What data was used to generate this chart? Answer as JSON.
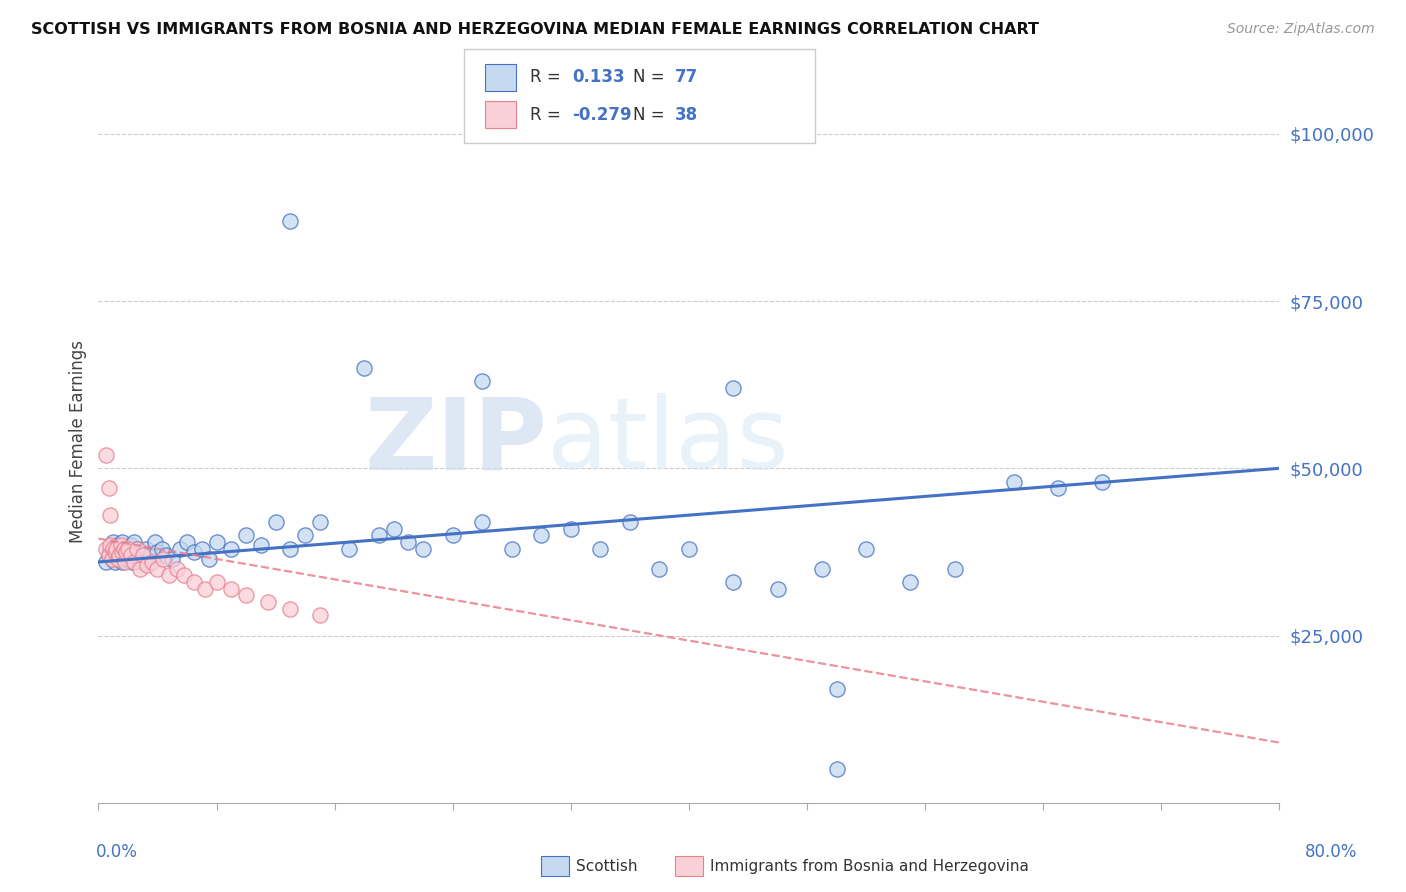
{
  "title": "SCOTTISH VS IMMIGRANTS FROM BOSNIA AND HERZEGOVINA MEDIAN FEMALE EARNINGS CORRELATION CHART",
  "source": "Source: ZipAtlas.com",
  "ylabel": "Median Female Earnings",
  "xlim": [
    0.0,
    0.8
  ],
  "ylim": [
    0,
    108000
  ],
  "blue_R": 0.133,
  "blue_N": 77,
  "pink_R": -0.279,
  "pink_N": 38,
  "blue_fill": "#c5d9f0",
  "blue_edge": "#4472c4",
  "pink_fill": "#f9d0d8",
  "pink_edge": "#e8808e",
  "pink_line_color": "#e8808e",
  "blue_line_color": "#4472c4",
  "watermark_zip": "ZIP",
  "watermark_atlas": "atlas",
  "legend_label_blue": "Scottish",
  "legend_label_pink": "Immigrants from Bosnia and Herzegovina",
  "blue_x": [
    0.005,
    0.007,
    0.008,
    0.009,
    0.01,
    0.01,
    0.011,
    0.012,
    0.012,
    0.013,
    0.014,
    0.015,
    0.015,
    0.016,
    0.016,
    0.017,
    0.018,
    0.018,
    0.019,
    0.02,
    0.021,
    0.022,
    0.023,
    0.024,
    0.025,
    0.026,
    0.028,
    0.03,
    0.032,
    0.035,
    0.038,
    0.04,
    0.043,
    0.046,
    0.05,
    0.055,
    0.06,
    0.065,
    0.07,
    0.075,
    0.08,
    0.09,
    0.1,
    0.11,
    0.12,
    0.13,
    0.14,
    0.15,
    0.17,
    0.19,
    0.2,
    0.21,
    0.22,
    0.24,
    0.26,
    0.28,
    0.3,
    0.32,
    0.34,
    0.36,
    0.38,
    0.4,
    0.43,
    0.46,
    0.49,
    0.52,
    0.55,
    0.58,
    0.62,
    0.65,
    0.26,
    0.18,
    0.13,
    0.43,
    0.68,
    0.5,
    0.5
  ],
  "blue_y": [
    36000,
    37000,
    38000,
    36500,
    37500,
    39000,
    36000,
    38000,
    37000,
    38500,
    36500,
    37000,
    38000,
    36000,
    39000,
    37500,
    38000,
    36500,
    37000,
    38000,
    37000,
    38500,
    36000,
    39000,
    37000,
    38000,
    37500,
    36000,
    38000,
    37000,
    39000,
    37500,
    38000,
    37000,
    36500,
    38000,
    39000,
    37500,
    38000,
    36500,
    39000,
    38000,
    40000,
    38500,
    42000,
    38000,
    40000,
    42000,
    38000,
    40000,
    41000,
    39000,
    38000,
    40000,
    42000,
    38000,
    40000,
    41000,
    38000,
    42000,
    35000,
    38000,
    33000,
    32000,
    35000,
    38000,
    33000,
    35000,
    48000,
    47000,
    63000,
    65000,
    87000,
    62000,
    48000,
    17000,
    5000
  ],
  "pink_x": [
    0.005,
    0.007,
    0.008,
    0.009,
    0.01,
    0.011,
    0.012,
    0.013,
    0.014,
    0.015,
    0.016,
    0.017,
    0.018,
    0.019,
    0.02,
    0.022,
    0.024,
    0.026,
    0.028,
    0.03,
    0.033,
    0.036,
    0.04,
    0.044,
    0.048,
    0.053,
    0.058,
    0.065,
    0.072,
    0.08,
    0.09,
    0.1,
    0.115,
    0.13,
    0.15,
    0.005,
    0.007,
    0.008
  ],
  "pink_y": [
    38000,
    37000,
    38500,
    36500,
    38000,
    37500,
    38000,
    36500,
    37000,
    38500,
    37500,
    38000,
    36000,
    37500,
    38000,
    37000,
    36000,
    38000,
    35000,
    37000,
    35500,
    36000,
    35000,
    36500,
    34000,
    35000,
    34000,
    33000,
    32000,
    33000,
    32000,
    31000,
    30000,
    29000,
    28000,
    52000,
    47000,
    43000
  ],
  "blue_trend_x": [
    0.0,
    0.8
  ],
  "blue_trend_y": [
    36000,
    50000
  ],
  "pink_trend_x": [
    0.0,
    0.8
  ],
  "pink_trend_y": [
    39500,
    9000
  ]
}
